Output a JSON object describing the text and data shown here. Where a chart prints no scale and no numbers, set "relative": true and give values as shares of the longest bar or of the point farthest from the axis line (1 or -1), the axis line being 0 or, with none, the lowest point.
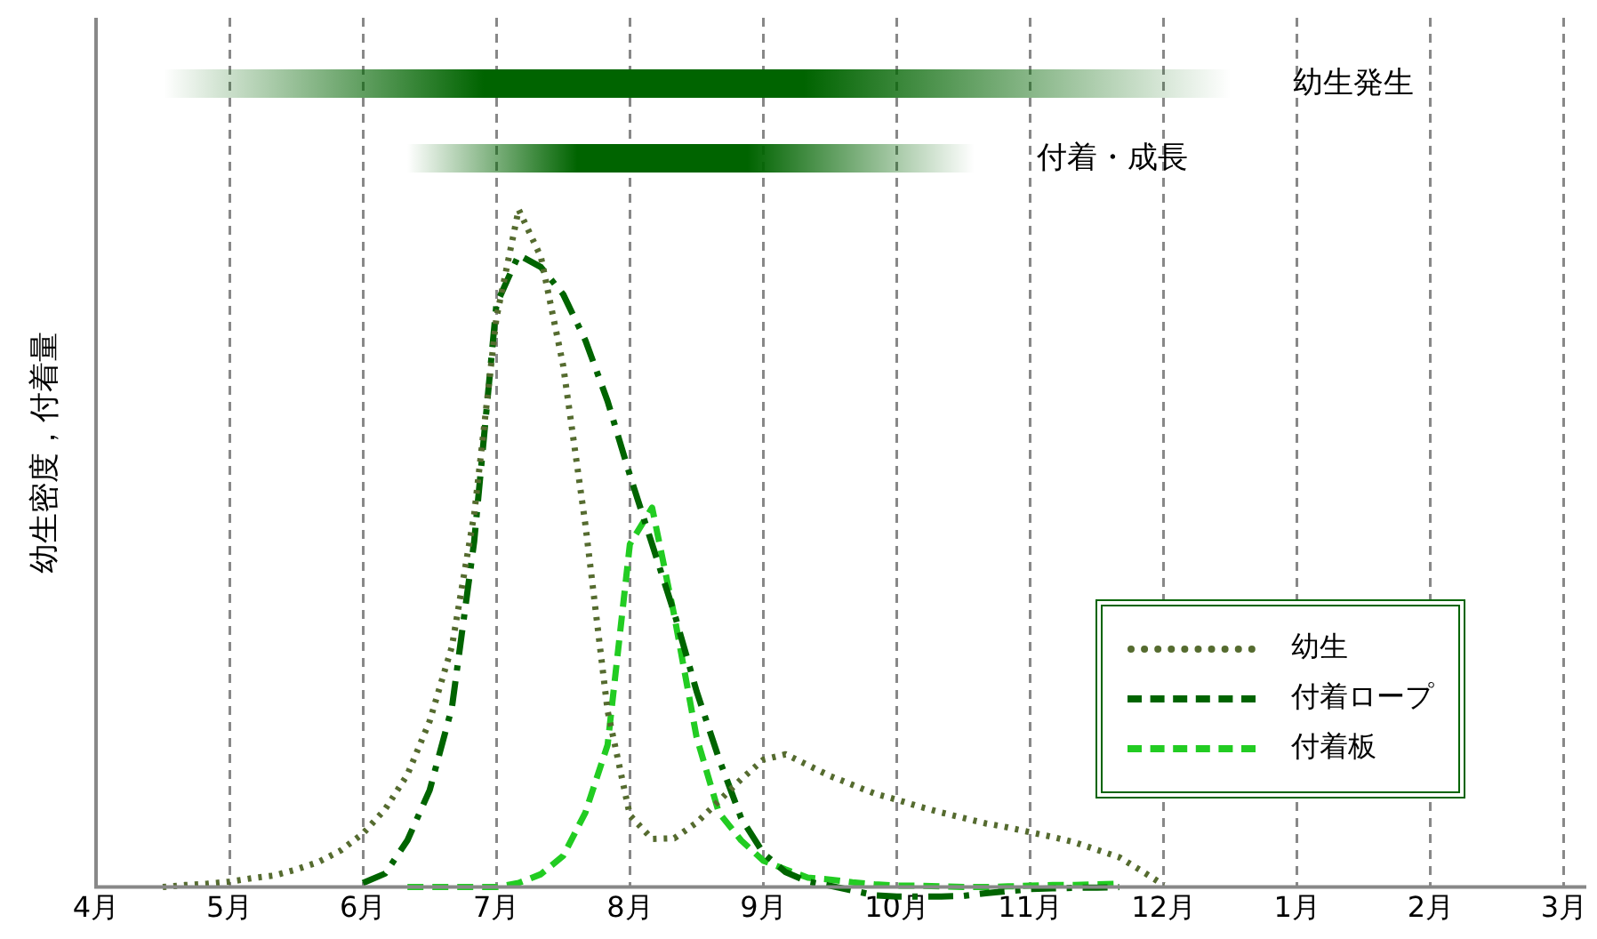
{
  "chart_data": {
    "type": "line",
    "relative": true,
    "ylabel": "幼生密度，付着量",
    "categories": [
      "4月",
      null,
      null,
      null,
      null,
      null,
      "5月",
      null,
      null,
      null,
      null,
      null,
      "6月",
      null,
      null,
      null,
      null,
      null,
      "7月",
      null,
      null,
      null,
      null,
      null,
      "8月",
      null,
      null,
      null,
      null,
      null,
      "9月",
      null,
      null,
      null,
      null,
      null,
      "10月",
      null,
      null,
      null,
      null,
      null,
      "11月",
      null,
      null,
      null,
      null,
      null,
      "12月",
      null,
      null,
      null,
      null,
      null,
      "1月",
      null,
      null,
      null,
      null,
      null,
      "2月",
      null,
      null,
      null,
      null,
      null,
      "3月",
      null
    ],
    "grid": "x",
    "legend": "bottom right",
    "marker": "none",
    "annotations": [
      "幼生発生",
      "付着・成長"
    ],
    "series": [
      {
        "name": "幼生",
        "color": "#556b2f",
        "line_style": "dotted",
        "values": [
          null,
          null,
          null,
          0,
          0.003,
          0.005,
          0.008,
          0.013,
          0.017,
          0.026,
          0.037,
          0.054,
          0.079,
          0.115,
          0.166,
          0.245,
          0.355,
          0.55,
          0.84,
          1,
          0.93,
          0.77,
          0.535,
          0.26,
          0.106,
          0.071,
          0.072,
          0.095,
          0.127,
          0.159,
          0.188,
          0.196,
          0.18,
          0.164,
          0.151,
          0.138,
          0.129,
          0.119,
          0.11,
          0.102,
          0.094,
          0.088,
          0.081,
          0.074,
          0.066,
          0.055,
          0.044,
          0.024,
          0.003,
          null,
          null,
          null,
          null,
          null,
          null,
          null,
          null,
          null,
          null,
          null,
          null,
          null,
          null,
          null,
          null,
          null,
          null,
          null
        ]
      },
      {
        "name": "付着ロープ",
        "color": "#006400",
        "line_style": "dashdot",
        "values": [
          null,
          null,
          null,
          null,
          null,
          null,
          null,
          null,
          null,
          null,
          null,
          null,
          0.006,
          0.02,
          0.069,
          0.143,
          0.265,
          0.51,
          0.86,
          0.933,
          0.915,
          0.875,
          0.807,
          0.717,
          0.608,
          0.506,
          0.404,
          0.289,
          0.19,
          0.102,
          0.05,
          0.022,
          0.008,
          0.002,
          -0.005,
          -0.012,
          -0.014,
          -0.014,
          -0.014,
          -0.013,
          -0.009,
          -0.006,
          -0.003,
          -0.002,
          -0.001,
          -0.001,
          0,
          null,
          null,
          null,
          null,
          null,
          null,
          null,
          null,
          null,
          null,
          null,
          null,
          null,
          null,
          null,
          null,
          null,
          null,
          null,
          null,
          null
        ]
      },
      {
        "name": "付着板",
        "color": "#22cc22",
        "line_style": "dashed",
        "values": [
          null,
          null,
          null,
          null,
          null,
          null,
          null,
          null,
          null,
          null,
          null,
          null,
          null,
          null,
          0,
          0,
          0,
          0,
          0,
          0.006,
          0.019,
          0.046,
          0.11,
          0.21,
          0.506,
          0.56,
          0.4,
          0.221,
          0.11,
          0.069,
          0.039,
          0.026,
          0.014,
          0.011,
          0.007,
          0.004,
          0.002,
          0.002,
          0.001,
          0,
          0,
          0.001,
          0.002,
          0.003,
          0.003,
          0.004,
          0.005,
          null,
          null,
          null,
          null,
          null,
          null,
          null,
          null,
          null,
          null,
          null,
          null,
          null,
          null,
          null,
          null,
          null,
          null,
          null,
          null,
          null
        ]
      }
    ]
  }
}
